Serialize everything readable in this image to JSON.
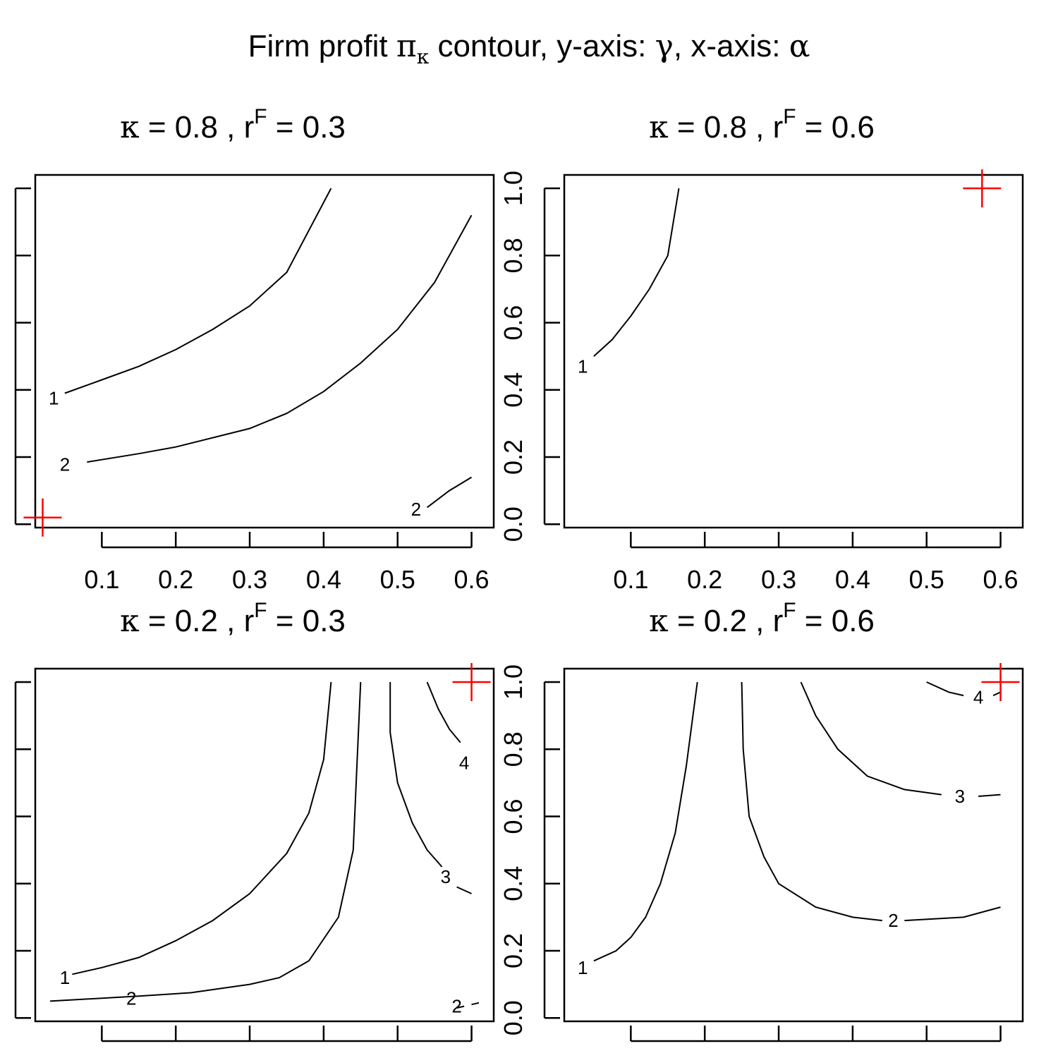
{
  "figure": {
    "title_parts": [
      "Firm profit ",
      "π",
      "κ",
      " contour,  y-axis: ",
      "γ",
      ", x-axis: ",
      "α"
    ]
  },
  "chart_data": [
    {
      "type": "contour",
      "title": {
        "kappa_symbol": "κ",
        "text": " = 0.8 ,  r",
        "sup": "F",
        "tail": " = 0.3"
      },
      "x_ticks": [
        0.1,
        0.2,
        0.3,
        0.4,
        0.5,
        0.6
      ],
      "show_x_tick_labels": true,
      "y_ticks": [
        0.0,
        0.2,
        0.4,
        0.6,
        0.8,
        1.0
      ],
      "show_y_tick_labels": true,
      "xlim": [
        0.01,
        0.63
      ],
      "ylim": [
        -0.01,
        1.04
      ],
      "contours": [
        {
          "label": "1",
          "points": [
            [
              0.05,
              0.39
            ],
            [
              0.1,
              0.43
            ],
            [
              0.15,
              0.47
            ],
            [
              0.2,
              0.52
            ],
            [
              0.25,
              0.58
            ],
            [
              0.3,
              0.65
            ],
            [
              0.35,
              0.75
            ],
            [
              0.41,
              1.0
            ]
          ],
          "label_at": [
            0.035,
            0.375
          ]
        },
        {
          "label": "2",
          "points": [
            [
              0.08,
              0.185
            ],
            [
              0.15,
              0.21
            ],
            [
              0.2,
              0.23
            ],
            [
              0.3,
              0.285
            ],
            [
              0.35,
              0.33
            ],
            [
              0.4,
              0.395
            ],
            [
              0.45,
              0.48
            ],
            [
              0.5,
              0.58
            ],
            [
              0.55,
              0.72
            ],
            [
              0.6,
              0.92
            ]
          ],
          "label_at": [
            0.05,
            0.178
          ]
        },
        {
          "label": "2",
          "points": [
            [
              0.54,
              0.05
            ],
            [
              0.57,
              0.1
            ],
            [
              0.6,
              0.14
            ]
          ],
          "label_at": [
            0.525,
            0.045
          ]
        }
      ],
      "optimum": {
        "alpha": 0.02,
        "gamma": 0.02
      }
    },
    {
      "type": "contour",
      "title": {
        "kappa_symbol": "κ",
        "text": " = 0.8 ,  r",
        "sup": "F",
        "tail": " = 0.6"
      },
      "x_ticks": [
        0.1,
        0.2,
        0.3,
        0.4,
        0.5,
        0.6
      ],
      "show_x_tick_labels": true,
      "y_ticks": [
        0.0,
        0.2,
        0.4,
        0.6,
        0.8,
        1.0
      ],
      "show_y_tick_labels": false,
      "xlim": [
        0.01,
        0.63
      ],
      "ylim": [
        -0.01,
        1.04
      ],
      "contours": [
        {
          "label": "1",
          "points": [
            [
              0.05,
              0.5
            ],
            [
              0.075,
              0.55
            ],
            [
              0.1,
              0.62
            ],
            [
              0.125,
              0.7
            ],
            [
              0.15,
              0.8
            ],
            [
              0.165,
              1.0
            ]
          ],
          "label_at": [
            0.035,
            0.47
          ]
        }
      ],
      "optimum": {
        "alpha": 0.575,
        "gamma": 1.0
      }
    },
    {
      "type": "contour",
      "title": {
        "kappa_symbol": "κ",
        "text": " = 0.2 ,  r",
        "sup": "F",
        "tail": " = 0.3"
      },
      "x_ticks": [
        0.1,
        0.2,
        0.3,
        0.4,
        0.5,
        0.6
      ],
      "show_x_tick_labels": false,
      "y_ticks": [
        0.0,
        0.2,
        0.4,
        0.6,
        0.8,
        1.0
      ],
      "show_y_tick_labels": true,
      "xlim": [
        0.01,
        0.63
      ],
      "ylim": [
        -0.01,
        1.04
      ],
      "contours": [
        {
          "label": "1",
          "points": [
            [
              0.06,
              0.13
            ],
            [
              0.1,
              0.15
            ],
            [
              0.15,
              0.18
            ],
            [
              0.2,
              0.23
            ],
            [
              0.25,
              0.29
            ],
            [
              0.3,
              0.37
            ],
            [
              0.35,
              0.49
            ],
            [
              0.38,
              0.61
            ],
            [
              0.4,
              0.77
            ],
            [
              0.41,
              1.0
            ]
          ],
          "label_at": [
            0.05,
            0.12
          ]
        },
        {
          "label": "2",
          "points": [
            [
              0.03,
              0.05
            ],
            [
              0.15,
              0.065
            ],
            [
              0.22,
              0.075
            ],
            [
              0.3,
              0.1
            ],
            [
              0.34,
              0.12
            ],
            [
              0.38,
              0.17
            ],
            [
              0.42,
              0.3
            ],
            [
              0.44,
              0.5
            ],
            [
              0.445,
              0.75
            ],
            [
              0.45,
              1.0
            ]
          ],
          "label_at": [
            0.14,
            0.058
          ]
        },
        {
          "label": "3",
          "points": [
            [
              0.49,
              1.0
            ],
            [
              0.49,
              0.85
            ],
            [
              0.5,
              0.7
            ],
            [
              0.52,
              0.58
            ],
            [
              0.54,
              0.5
            ],
            [
              0.56,
              0.45
            ]
          ],
          "label_at": [
            0.565,
            0.42
          ]
        },
        {
          "label": "3",
          "points": [
            [
              0.58,
              0.39
            ],
            [
              0.6,
              0.37
            ]
          ],
          "label_at": [
            0.565,
            0.42
          ]
        },
        {
          "label": "4",
          "points": [
            [
              0.54,
              1.0
            ],
            [
              0.555,
              0.92
            ],
            [
              0.57,
              0.86
            ],
            [
              0.585,
              0.82
            ]
          ],
          "label_at": [
            0.59,
            0.76
          ]
        },
        {
          "label": "2",
          "points": [
            [
              0.58,
              0.03
            ],
            [
              0.59,
              0.035
            ]
          ],
          "label_at": [
            0.58,
            0.035
          ]
        },
        {
          "label": "2",
          "points": [
            [
              0.6,
              0.04
            ],
            [
              0.61,
              0.045
            ]
          ],
          "label_at": [
            0.58,
            0.035
          ]
        }
      ],
      "optimum": {
        "alpha": 0.6,
        "gamma": 1.0
      }
    },
    {
      "type": "contour",
      "title": {
        "kappa_symbol": "κ",
        "text": " = 0.2 ,  r",
        "sup": "F",
        "tail": " = 0.6"
      },
      "x_ticks": [
        0.1,
        0.2,
        0.3,
        0.4,
        0.5,
        0.6
      ],
      "show_x_tick_labels": false,
      "y_ticks": [
        0.0,
        0.2,
        0.4,
        0.6,
        0.8,
        1.0
      ],
      "show_y_tick_labels": false,
      "xlim": [
        0.01,
        0.63
      ],
      "ylim": [
        -0.01,
        1.04
      ],
      "contours": [
        {
          "label": "1",
          "points": [
            [
              0.05,
              0.17
            ],
            [
              0.08,
              0.2
            ],
            [
              0.1,
              0.24
            ],
            [
              0.12,
              0.3
            ],
            [
              0.14,
              0.4
            ],
            [
              0.16,
              0.55
            ],
            [
              0.175,
              0.75
            ],
            [
              0.19,
              1.0
            ]
          ],
          "label_at": [
            0.035,
            0.15
          ]
        },
        {
          "label": "2",
          "points": [
            [
              0.25,
              1.0
            ],
            [
              0.252,
              0.8
            ],
            [
              0.26,
              0.6
            ],
            [
              0.28,
              0.48
            ],
            [
              0.3,
              0.4
            ],
            [
              0.35,
              0.33
            ],
            [
              0.4,
              0.3
            ],
            [
              0.44,
              0.29
            ]
          ],
          "label_at": [
            0.455,
            0.29
          ]
        },
        {
          "label": "2",
          "points": [
            [
              0.47,
              0.29
            ],
            [
              0.55,
              0.3
            ],
            [
              0.6,
              0.33
            ]
          ],
          "label_at": [
            0.455,
            0.29
          ]
        },
        {
          "label": "3",
          "points": [
            [
              0.33,
              1.0
            ],
            [
              0.35,
              0.9
            ],
            [
              0.38,
              0.8
            ],
            [
              0.42,
              0.72
            ],
            [
              0.47,
              0.68
            ],
            [
              0.52,
              0.665
            ]
          ],
          "label_at": [
            0.545,
            0.66
          ]
        },
        {
          "label": "3",
          "points": [
            [
              0.57,
              0.66
            ],
            [
              0.6,
              0.665
            ]
          ],
          "label_at": [
            0.545,
            0.66
          ]
        },
        {
          "label": "4",
          "points": [
            [
              0.5,
              1.0
            ],
            [
              0.53,
              0.97
            ],
            [
              0.55,
              0.96
            ]
          ],
          "label_at": [
            0.57,
            0.955
          ]
        },
        {
          "label": "4",
          "points": [
            [
              0.59,
              0.96
            ],
            [
              0.6,
              0.97
            ]
          ],
          "label_at": [
            0.57,
            0.955
          ]
        }
      ],
      "optimum": {
        "alpha": 0.6,
        "gamma": 1.0
      }
    }
  ]
}
